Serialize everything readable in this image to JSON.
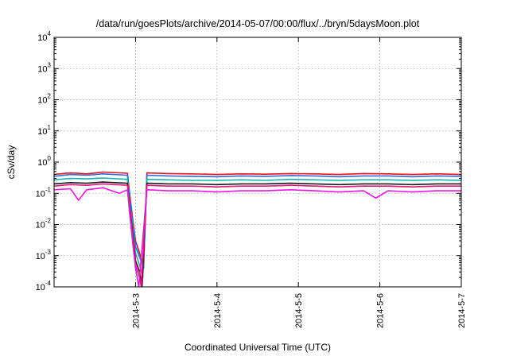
{
  "chart_data": {
    "type": "line",
    "title": "/data/run/goesPlots/archive/2014-05-07/00:00/flux/../bryn/5daysMoon.plot",
    "xlabel": "Coordinated Universal Time (UTC)",
    "ylabel": "cSv/day",
    "yscale": "log",
    "ylim": [
      0.0001,
      10000
    ],
    "y_ticks": [
      {
        "base": "10",
        "exp": "-4"
      },
      {
        "base": "10",
        "exp": "-3"
      },
      {
        "base": "10",
        "exp": "-2"
      },
      {
        "base": "10",
        "exp": "-1"
      },
      {
        "base": "10",
        "exp": "0"
      },
      {
        "base": "10",
        "exp": "1"
      },
      {
        "base": "10",
        "exp": "2"
      },
      {
        "base": "10",
        "exp": "3"
      },
      {
        "base": "10",
        "exp": "4"
      }
    ],
    "xlim": [
      "2014-05-02 00:00",
      "2014-05-07 00:00"
    ],
    "x_tick_labels": [
      "2014-5-3",
      "2014-5-4",
      "2014-5-5",
      "2014-5-6",
      "2014-5-7"
    ],
    "x_tick_values": [
      "2014-05-03",
      "2014-05-04",
      "2014-05-05",
      "2014-05-06",
      "2014-05-07"
    ],
    "grid": true,
    "legend": "none",
    "series": [
      {
        "color": "#e8141c",
        "values": [
          [
            0.0,
            0.4
          ],
          [
            0.2,
            0.45
          ],
          [
            0.4,
            0.42
          ],
          [
            0.6,
            0.48
          ],
          [
            0.9,
            0.44
          ],
          [
            0.93,
            0.09
          ],
          [
            0.97,
            0.012
          ],
          [
            1.0,
            0.003
          ],
          [
            1.05,
            0.0012
          ],
          [
            1.1,
            0.0005
          ],
          [
            1.14,
            0.45
          ],
          [
            1.4,
            0.43
          ],
          [
            1.7,
            0.42
          ],
          [
            2.0,
            0.4
          ],
          [
            2.3,
            0.42
          ],
          [
            2.6,
            0.41
          ],
          [
            2.9,
            0.43
          ],
          [
            3.2,
            0.42
          ],
          [
            3.5,
            0.4
          ],
          [
            3.8,
            0.43
          ],
          [
            4.1,
            0.42
          ],
          [
            4.4,
            0.4
          ],
          [
            4.7,
            0.42
          ],
          [
            5.0,
            0.4
          ]
        ]
      },
      {
        "color": "#2d6be0",
        "values": [
          [
            0.0,
            0.35
          ],
          [
            0.2,
            0.4
          ],
          [
            0.4,
            0.38
          ],
          [
            0.6,
            0.42
          ],
          [
            0.9,
            0.38
          ],
          [
            0.93,
            0.07
          ],
          [
            0.97,
            0.009
          ],
          [
            1.0,
            0.002
          ],
          [
            1.05,
            0.0009
          ],
          [
            1.1,
            0.0004
          ],
          [
            1.14,
            0.38
          ],
          [
            1.4,
            0.36
          ],
          [
            1.7,
            0.35
          ],
          [
            2.0,
            0.34
          ],
          [
            2.3,
            0.36
          ],
          [
            2.6,
            0.35
          ],
          [
            2.9,
            0.37
          ],
          [
            3.2,
            0.36
          ],
          [
            3.5,
            0.34
          ],
          [
            3.8,
            0.36
          ],
          [
            4.1,
            0.36
          ],
          [
            4.4,
            0.34
          ],
          [
            4.7,
            0.36
          ],
          [
            5.0,
            0.35
          ]
        ]
      },
      {
        "color": "#12b5b0",
        "values": [
          [
            0.0,
            0.27
          ],
          [
            0.2,
            0.3
          ],
          [
            0.4,
            0.29
          ],
          [
            0.6,
            0.31
          ],
          [
            0.9,
            0.28
          ],
          [
            0.93,
            0.05
          ],
          [
            0.97,
            0.006
          ],
          [
            1.0,
            0.0012
          ],
          [
            1.05,
            0.0005
          ],
          [
            1.09,
            0.0002
          ],
          [
            1.14,
            0.28
          ],
          [
            1.4,
            0.27
          ],
          [
            1.7,
            0.26
          ],
          [
            2.0,
            0.26
          ],
          [
            2.3,
            0.27
          ],
          [
            2.6,
            0.26
          ],
          [
            2.9,
            0.28
          ],
          [
            3.2,
            0.27
          ],
          [
            3.5,
            0.26
          ],
          [
            3.8,
            0.27
          ],
          [
            4.1,
            0.27
          ],
          [
            4.4,
            0.26
          ],
          [
            4.7,
            0.27
          ],
          [
            5.0,
            0.26
          ]
        ]
      },
      {
        "color": "#1a1a1a",
        "values": [
          [
            0.0,
            0.2
          ],
          [
            0.2,
            0.22
          ],
          [
            0.4,
            0.21
          ],
          [
            0.6,
            0.23
          ],
          [
            0.9,
            0.21
          ],
          [
            0.93,
            0.035
          ],
          [
            0.97,
            0.004
          ],
          [
            1.0,
            0.0007
          ],
          [
            1.05,
            0.0003
          ],
          [
            1.08,
            0.0001
          ],
          [
            1.14,
            0.21
          ],
          [
            1.4,
            0.2
          ],
          [
            1.7,
            0.2
          ],
          [
            2.0,
            0.19
          ],
          [
            2.3,
            0.2
          ],
          [
            2.6,
            0.2
          ],
          [
            2.9,
            0.21
          ],
          [
            3.2,
            0.2
          ],
          [
            3.5,
            0.19
          ],
          [
            3.8,
            0.2
          ],
          [
            4.1,
            0.2
          ],
          [
            4.4,
            0.19
          ],
          [
            4.7,
            0.2
          ],
          [
            5.0,
            0.2
          ]
        ]
      },
      {
        "color": "#e01878",
        "values": [
          [
            0.0,
            0.17
          ],
          [
            0.2,
            0.19
          ],
          [
            0.4,
            0.18
          ],
          [
            0.6,
            0.2
          ],
          [
            0.9,
            0.18
          ],
          [
            0.93,
            0.03
          ],
          [
            0.97,
            0.003
          ],
          [
            1.0,
            0.0005
          ],
          [
            1.05,
            0.0002
          ],
          [
            1.07,
            0.0001
          ],
          [
            1.14,
            0.18
          ],
          [
            1.4,
            0.17
          ],
          [
            1.7,
            0.17
          ],
          [
            2.0,
            0.16
          ],
          [
            2.3,
            0.17
          ],
          [
            2.6,
            0.17
          ],
          [
            2.9,
            0.18
          ],
          [
            3.2,
            0.17
          ],
          [
            3.5,
            0.16
          ],
          [
            3.8,
            0.17
          ],
          [
            4.1,
            0.17
          ],
          [
            4.4,
            0.16
          ],
          [
            4.7,
            0.17
          ],
          [
            5.0,
            0.17
          ]
        ]
      },
      {
        "color": "#f014e8",
        "values": [
          [
            0.0,
            0.13
          ],
          [
            0.2,
            0.14
          ],
          [
            0.3,
            0.06
          ],
          [
            0.4,
            0.13
          ],
          [
            0.6,
            0.15
          ],
          [
            0.8,
            0.1
          ],
          [
            0.9,
            0.13
          ],
          [
            0.93,
            0.02
          ],
          [
            0.97,
            0.002
          ],
          [
            1.0,
            0.0004
          ],
          [
            1.04,
            0.0001
          ],
          [
            1.14,
            0.13
          ],
          [
            1.4,
            0.12
          ],
          [
            1.7,
            0.12
          ],
          [
            2.0,
            0.11
          ],
          [
            2.3,
            0.12
          ],
          [
            2.6,
            0.12
          ],
          [
            2.9,
            0.13
          ],
          [
            3.2,
            0.12
          ],
          [
            3.5,
            0.11
          ],
          [
            3.8,
            0.12
          ],
          [
            3.95,
            0.07
          ],
          [
            4.1,
            0.12
          ],
          [
            4.4,
            0.11
          ],
          [
            4.7,
            0.12
          ],
          [
            5.0,
            0.12
          ]
        ]
      }
    ]
  }
}
